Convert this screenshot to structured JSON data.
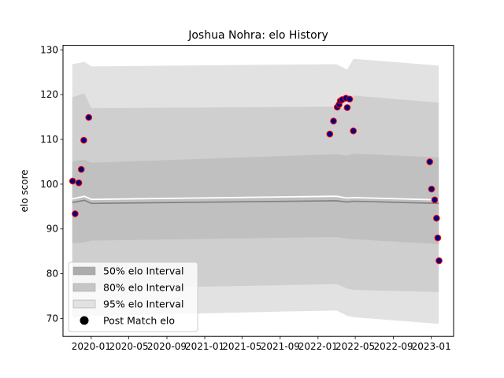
{
  "chart_data": {
    "type": "scatter",
    "title": "Joshua Nohra: elo History",
    "xlabel": "",
    "ylabel": "elo score",
    "ylim": [
      66,
      131
    ],
    "xlim": [
      "2019-10-02",
      "2023-03-14"
    ],
    "yticks": [
      70,
      80,
      90,
      100,
      110,
      120,
      130
    ],
    "xticks": [
      "2020-01",
      "2020-05",
      "2020-09",
      "2021-01",
      "2021-05",
      "2021-09",
      "2022-01",
      "2022-05",
      "2022-09",
      "2023-01"
    ],
    "grid": false,
    "legend_position": "lower-left",
    "legend": [
      {
        "label": "50% elo Interval",
        "color": "#acacac"
      },
      {
        "label": "80% elo Interval",
        "color": "#c6c6c6"
      },
      {
        "label": "95% elo Interval",
        "color": "#e2e2e2"
      },
      {
        "label": "Post Match elo",
        "color": "#000000"
      }
    ],
    "band_x": [
      "2019-11-01",
      "2019-12-10",
      "2020-01-01",
      "2022-03-01",
      "2022-04-05",
      "2022-04-25",
      "2023-01-25"
    ],
    "bands": [
      {
        "name": "95% elo Interval",
        "color": "#e2e2e2",
        "upper": [
          126.8,
          127.3,
          126.3,
          126.8,
          125.6,
          128.0,
          126.5
        ],
        "lower": [
          70.2,
          70.3,
          70.6,
          71.8,
          70.6,
          70.3,
          68.8
        ]
      },
      {
        "name": "80% elo Interval",
        "color": "#cfcfcf",
        "upper": [
          119.4,
          120.3,
          117.0,
          117.3,
          116.9,
          119.8,
          118.2
        ],
        "lower": [
          75.8,
          76.0,
          76.6,
          77.7,
          76.7,
          76.4,
          75.9
        ]
      },
      {
        "name": "50% elo Interval",
        "color": "#c0c0c0",
        "upper": [
          105.1,
          105.5,
          104.8,
          106.7,
          106.4,
          106.8,
          106.0
        ],
        "lower": [
          86.8,
          87.0,
          87.4,
          88.2,
          87.8,
          87.7,
          86.6
        ]
      }
    ],
    "mean_line": {
      "color": "#ffffff",
      "x": [
        "2019-11-01",
        "2019-12-10",
        "2020-01-01",
        "2022-03-01",
        "2022-04-05",
        "2022-04-25",
        "2023-01-25"
      ],
      "y": [
        96.7,
        97.3,
        96.6,
        97.3,
        96.9,
        97.0,
        96.5
      ]
    },
    "median_line": {
      "color": "#808080",
      "x": [
        "2019-11-01",
        "2019-12-10",
        "2020-01-01",
        "2022-03-01",
        "2022-04-05",
        "2022-04-25",
        "2023-01-25"
      ],
      "y": [
        95.9,
        96.4,
        95.7,
        96.3,
        96.0,
        96.2,
        95.7
      ]
    },
    "series": [
      {
        "name": "Post Match elo",
        "marker_fill": "#000080",
        "marker_edge": "#ff0000",
        "points": [
          {
            "x": "2019-11-02",
            "y": 100.7
          },
          {
            "x": "2019-11-10",
            "y": 93.4
          },
          {
            "x": "2019-11-22",
            "y": 100.3
          },
          {
            "x": "2019-11-30",
            "y": 103.3
          },
          {
            "x": "2019-12-08",
            "y": 109.8
          },
          {
            "x": "2019-12-24",
            "y": 114.9
          },
          {
            "x": "2022-02-08",
            "y": 111.2
          },
          {
            "x": "2022-02-20",
            "y": 114.1
          },
          {
            "x": "2022-03-04",
            "y": 117.2
          },
          {
            "x": "2022-03-10",
            "y": 117.8
          },
          {
            "x": "2022-03-14",
            "y": 118.6
          },
          {
            "x": "2022-03-20",
            "y": 118.9
          },
          {
            "x": "2022-04-01",
            "y": 119.2
          },
          {
            "x": "2022-04-05",
            "y": 117.1
          },
          {
            "x": "2022-04-13",
            "y": 119.0
          },
          {
            "x": "2022-04-25",
            "y": 111.9
          },
          {
            "x": "2022-12-27",
            "y": 105.0
          },
          {
            "x": "2023-01-02",
            "y": 98.9
          },
          {
            "x": "2023-01-12",
            "y": 96.5
          },
          {
            "x": "2023-01-18",
            "y": 92.4
          },
          {
            "x": "2023-01-22",
            "y": 88.0
          },
          {
            "x": "2023-01-26",
            "y": 82.9
          }
        ]
      }
    ]
  }
}
